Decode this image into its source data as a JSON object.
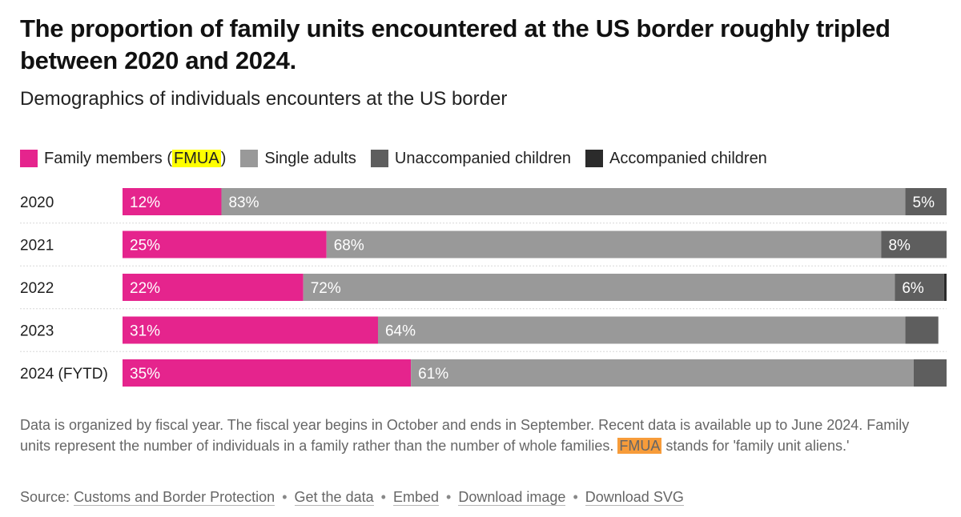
{
  "title": "The proportion of family units encountered at the US border roughly tripled between 2020 and 2024.",
  "subtitle": "Demographics of individuals encounters at the US border",
  "legend": {
    "family_prefix": "Family members (",
    "family_highlight": "FMUA",
    "family_suffix": ")",
    "single": "Single adults",
    "unaccompanied": "Unaccompanied children",
    "accompanied": "Accompanied children"
  },
  "colors": {
    "family": "#e5248d",
    "single": "#999999",
    "unaccompanied": "#5e5e5e",
    "accompanied": "#2b2b2b"
  },
  "chart_data": {
    "type": "bar",
    "orientation": "horizontal",
    "stacked": true,
    "percent_stacked": true,
    "categories": [
      "2020",
      "2021",
      "2022",
      "2023",
      "2024 (FYTD)"
    ],
    "series": [
      {
        "name": "Family members (FMUA)",
        "values": [
          12,
          25,
          22,
          31,
          35
        ],
        "labels": [
          "12%",
          "25%",
          "22%",
          "31%",
          "35%"
        ]
      },
      {
        "name": "Single adults",
        "values": [
          83,
          68,
          72,
          64,
          61
        ],
        "labels": [
          "83%",
          "68%",
          "72%",
          "64%",
          "61%"
        ]
      },
      {
        "name": "Unaccompanied children",
        "values": [
          5,
          8,
          6,
          4,
          4
        ],
        "labels": [
          "5%",
          "8%",
          "6%",
          "",
          ""
        ]
      },
      {
        "name": "Accompanied children",
        "values": [
          0,
          0,
          0.3,
          0,
          0
        ],
        "labels": [
          "",
          "",
          "",
          "",
          ""
        ]
      }
    ],
    "xlim": [
      0,
      100
    ]
  },
  "notes": {
    "line1": "Data is organized by fiscal year. The fiscal year begins in October and ends in September. Recent data is available up to June 2024. Family units represent the number of individuals in a family rather than the number of whole families.",
    "fmua": "FMUA",
    "line2": "stands for 'family unit aliens.'"
  },
  "source": {
    "label": "Source:",
    "link_cbp": "Customs and Border Protection",
    "link_data": "Get the data",
    "link_embed": "Embed",
    "link_image": "Download image",
    "link_svg": "Download SVG",
    "separator": "•"
  }
}
